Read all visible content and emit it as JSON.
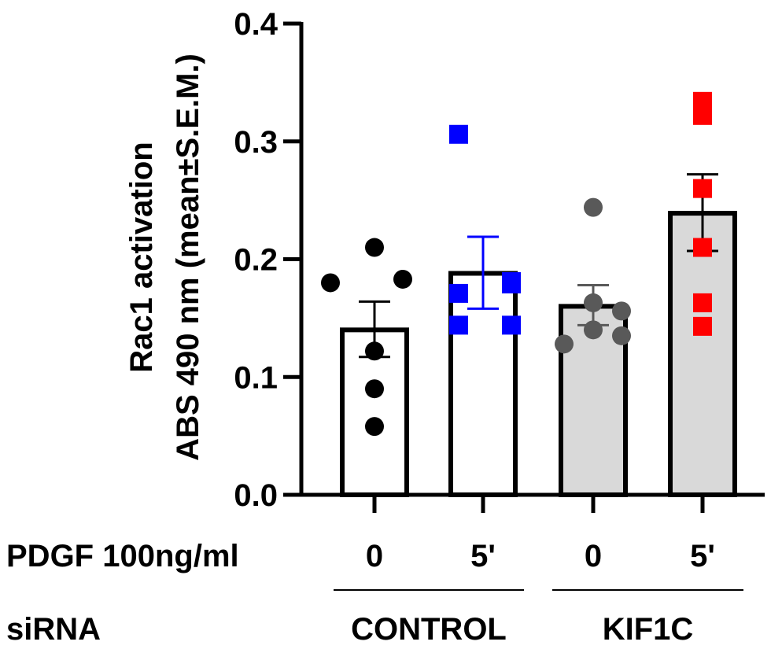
{
  "chart_data": {
    "type": "bar",
    "ylabel_line1": "Rac1 activation",
    "ylabel_line2": "ABS 490 nm (mean±S.E.M.)",
    "ylim": [
      0,
      0.4
    ],
    "yticks": [
      0.0,
      0.1,
      0.2,
      0.3,
      0.4
    ],
    "ytick_labels": [
      "0.0",
      "0.1",
      "0.2",
      "0.3",
      "0.4"
    ],
    "row1_label": "PDGF 100ng/ml",
    "row2_label": "siRNA",
    "groups": [
      {
        "name": "CONTROL",
        "bar_indices": [
          0,
          1
        ]
      },
      {
        "name": "KIF1C",
        "bar_indices": [
          2,
          3
        ]
      }
    ],
    "bars": [
      {
        "pdgf": "0",
        "mean": 0.14,
        "sem_low": 0.117,
        "sem_high": 0.164,
        "fill": "#ffffff",
        "point_color": "#000000",
        "point_shape": "circle",
        "error_color": "#000000",
        "points": [
          0.058,
          0.09,
          0.122,
          0.18,
          0.21,
          0.183
        ]
      },
      {
        "pdgf": "5'",
        "mean": 0.188,
        "sem_low": 0.158,
        "sem_high": 0.219,
        "fill": "#ffffff",
        "point_color": "#0000ff",
        "point_shape": "square",
        "error_color": "#0000ff",
        "points": [
          0.306,
          0.181,
          0.171,
          0.144,
          0.144,
          0.179
        ]
      },
      {
        "pdgf": "0",
        "mean": 0.16,
        "sem_low": 0.144,
        "sem_high": 0.178,
        "fill": "#d9d9d9",
        "point_color": "#595959",
        "point_shape": "circle",
        "error_color": "#595959",
        "points": [
          0.244,
          0.163,
          0.14,
          0.128,
          0.156,
          0.135
        ]
      },
      {
        "pdgf": "5'",
        "mean": 0.239,
        "sem_low": 0.207,
        "sem_high": 0.272,
        "fill": "#d9d9d9",
        "point_color": "#ff0000",
        "point_shape": "square",
        "error_color": "#000000",
        "points": [
          0.334,
          0.322,
          0.26,
          0.21,
          0.163,
          0.143
        ]
      }
    ]
  }
}
